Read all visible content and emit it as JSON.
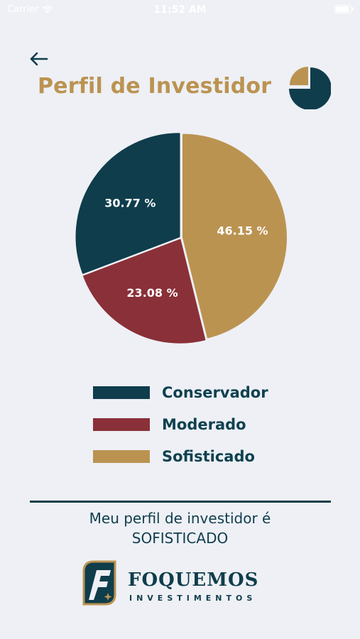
{
  "status_bar": {
    "carrier": "Carrier",
    "time": "11:52 AM"
  },
  "header": {
    "title": "Perfil de Investidor",
    "back_icon": "arrow-left-icon",
    "title_icon": "pie-chart-icon"
  },
  "colors": {
    "conservador": "#0f3d4c",
    "moderado": "#8a3038",
    "sofisticado": "#bb9351",
    "background": "#eef0f5"
  },
  "chart_data": {
    "type": "pie",
    "slices": [
      {
        "label": "Sofisticado",
        "value": 46.15,
        "display": "46.15 %",
        "color": "#bb9351"
      },
      {
        "label": "Moderado",
        "value": 23.08,
        "display": "23.08 %",
        "color": "#8a3038"
      },
      {
        "label": "Conservador",
        "value": 30.77,
        "display": "30.77 %",
        "color": "#0f3d4c"
      }
    ]
  },
  "legend": [
    {
      "label": "Conservador",
      "color": "#0f3d4c"
    },
    {
      "label": "Moderado",
      "color": "#8a3038"
    },
    {
      "label": "Sofisticado",
      "color": "#bb9351"
    }
  ],
  "result": {
    "line1": "Meu perfil de investidor é",
    "line2": "SOFISTICADO"
  },
  "logo": {
    "name": "FOQUEMOS",
    "subtitle": "INVESTIMENTOS"
  }
}
